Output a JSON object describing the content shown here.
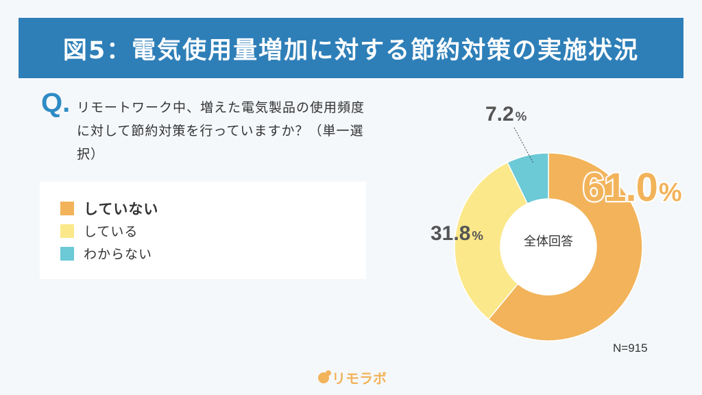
{
  "header": {
    "title": "図5：電気使用量増加に対する節約対策の実施状況"
  },
  "question": {
    "mark": "Q.",
    "text": "リモートワーク中、増えた電気製品の使用頻度に対して節約対策を行っていますか？（単一選択）"
  },
  "legend": {
    "items": [
      {
        "label": "していない",
        "color": "#f2b35a"
      },
      {
        "label": "している",
        "color": "#fbe88a"
      },
      {
        "label": "わからない",
        "color": "#6cc9d6"
      }
    ]
  },
  "chart_data": {
    "type": "pie",
    "categories": [
      "していない",
      "している",
      "わからない"
    ],
    "values": [
      61.0,
      31.8,
      7.2
    ],
    "colors": [
      "#f2b35a",
      "#fbe88a",
      "#6cc9d6"
    ],
    "center_label": "全体回答",
    "data_labels": [
      {
        "value": "61.0",
        "unit": "%"
      },
      {
        "value": "31.8",
        "unit": "%"
      },
      {
        "value": "7.2",
        "unit": "%"
      }
    ],
    "sample_size": "N=915"
  },
  "footer": {
    "brand": "リモラボ"
  }
}
